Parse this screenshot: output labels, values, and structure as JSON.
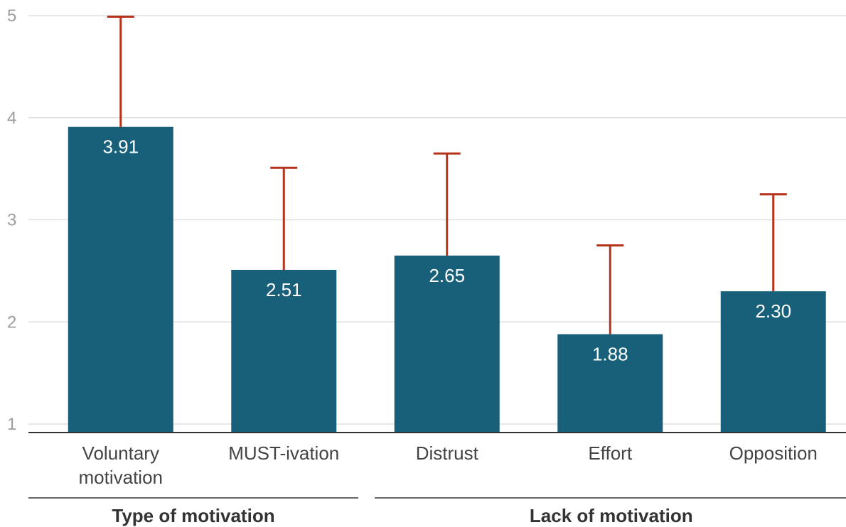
{
  "chart_data": {
    "type": "bar",
    "categories": [
      [
        "Voluntary",
        "motivation"
      ],
      [
        "MUST-ivation"
      ],
      [
        "Distrust"
      ],
      [
        "Effort"
      ],
      [
        "Opposition"
      ]
    ],
    "values": [
      3.91,
      2.51,
      2.65,
      1.88,
      2.3
    ],
    "value_labels": [
      "3.91",
      "2.51",
      "2.65",
      "1.88",
      "2.30"
    ],
    "error_bar_upper": [
      4.99,
      3.51,
      3.65,
      2.75,
      3.25
    ],
    "ylim": [
      1,
      5
    ],
    "yticks": [
      "1",
      "2",
      "3",
      "4",
      "5"
    ],
    "grid": true,
    "groups": [
      {
        "label": "Type of motivation",
        "from": 0,
        "to": 1
      },
      {
        "label": "Lack of motivation",
        "from": 2,
        "to": 4
      }
    ],
    "colors": {
      "bar": "#186079",
      "error": "#b5321b",
      "grid": "#e0e0e0",
      "axis": "#333333"
    }
  }
}
